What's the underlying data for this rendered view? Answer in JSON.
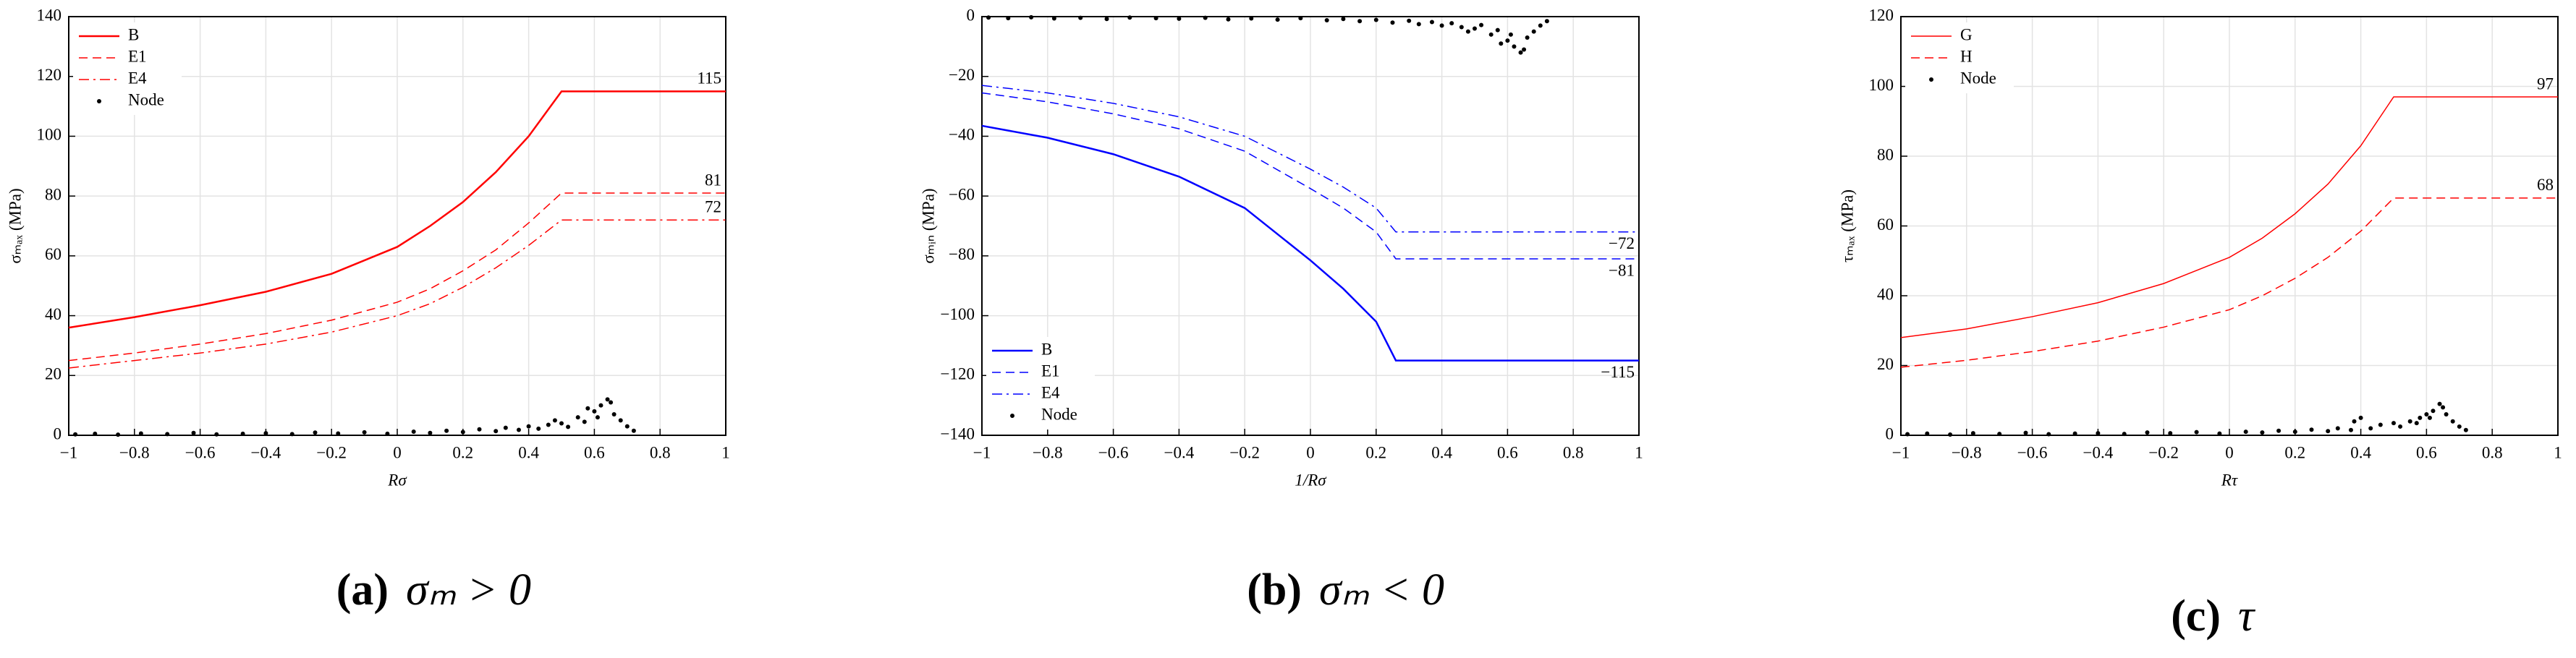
{
  "chart_data": [
    {
      "type": "line",
      "ylabel": "σₘₐₓ (MPa)",
      "xlabel": "Rσ",
      "caption_label": "(a)",
      "caption": "σₘ > 0",
      "x": [
        -1,
        -0.8,
        -0.6,
        -0.4,
        -0.2,
        0,
        0.1,
        0.2,
        0.3,
        0.4,
        0.5,
        1
      ],
      "xlim": [
        -1,
        1
      ],
      "ylim": [
        0,
        140
      ],
      "xticks": [
        {
          "value": -1,
          "label": "−1"
        },
        {
          "value": -0.8,
          "label": "−0.8"
        },
        {
          "value": -0.6,
          "label": "−0.6"
        },
        {
          "value": -0.4,
          "label": "−0.4"
        },
        {
          "value": -0.2,
          "label": "−0.2"
        },
        0,
        0.2,
        0.4,
        0.6,
        0.8,
        1
      ],
      "yticks": [
        0,
        20,
        40,
        60,
        80,
        100,
        120,
        140
      ],
      "grid": true,
      "legend": "upper left",
      "series": [
        {
          "name": "B",
          "color": "#ff0000",
          "dash": "solid",
          "linewidth": 2.5,
          "values": [
            36,
            39.5,
            43.5,
            48,
            54,
            63,
            70,
            78,
            88,
            100,
            115,
            115
          ]
        },
        {
          "name": "E1",
          "color": "#ff0000",
          "dash": "dashed",
          "linewidth": 1.5,
          "values": [
            25,
            27.5,
            30.5,
            34,
            38.5,
            44.5,
            49,
            55,
            62,
            71,
            81,
            81
          ]
        },
        {
          "name": "E4",
          "color": "#ff0000",
          "dash": "dashdot",
          "linewidth": 1.5,
          "values": [
            22.5,
            25,
            27.5,
            30.5,
            34.5,
            40,
            44,
            49.5,
            56,
            63.5,
            72,
            72
          ]
        },
        {
          "name": "Node",
          "color": "#000000",
          "mark": "dot",
          "x": [
            -0.98,
            -0.92,
            -0.85,
            -0.78,
            -0.7,
            -0.62,
            -0.55,
            -0.47,
            -0.4,
            -0.32,
            -0.25,
            -0.18,
            -0.1,
            -0.03,
            0.05,
            0.1,
            0.15,
            0.2,
            0.25,
            0.3,
            0.33,
            0.37,
            0.4,
            0.43,
            0.46,
            0.5,
            0.52,
            0.55,
            0.57,
            0.6,
            0.62,
            0.64,
            0.66,
            0.68,
            0.7,
            0.72,
            0.58,
            0.48,
            0.65,
            0.61
          ],
          "values": [
            0.3,
            0.5,
            0.2,
            0.6,
            0.4,
            0.8,
            0.3,
            0.5,
            0.7,
            0.4,
            0.9,
            0.6,
            1,
            0.5,
            1.2,
            0.8,
            1.5,
            1.1,
            2,
            1.4,
            2.5,
            1.8,
            3,
            2.2,
            3.5,
            4,
            2.8,
            6,
            4.5,
            8,
            10,
            12,
            7,
            5,
            3,
            1.5,
            9,
            5,
            11,
            6
          ]
        }
      ],
      "annotations": [
        {
          "label": "115",
          "value": 115
        },
        {
          "label": "81",
          "value": 81
        },
        {
          "label": "72",
          "value": 72
        }
      ]
    },
    {
      "type": "line",
      "ylabel": "σₘᵢₙ (MPa)",
      "xlabel": "1/Rσ",
      "caption_label": "(b)",
      "caption": "σₘ < 0",
      "x": [
        -1,
        -0.8,
        -0.6,
        -0.4,
        -0.2,
        0,
        0.1,
        0.2,
        0.26,
        1
      ],
      "xlim": [
        -1,
        1
      ],
      "ylim": [
        -140,
        0
      ],
      "xticks": [
        {
          "value": -1,
          "label": "−1"
        },
        {
          "value": -0.8,
          "label": "−0.8"
        },
        {
          "value": -0.6,
          "label": "−0.6"
        },
        {
          "value": -0.4,
          "label": "−0.4"
        },
        {
          "value": -0.2,
          "label": "−0.2"
        },
        0,
        0.2,
        0.4,
        0.6,
        0.8,
        1
      ],
      "yticks": [
        {
          "value": -140,
          "label": "−140"
        },
        {
          "value": -120,
          "label": "−120"
        },
        {
          "value": -100,
          "label": "−100"
        },
        {
          "value": -80,
          "label": "−80"
        },
        {
          "value": -60,
          "label": "−60"
        },
        {
          "value": -40,
          "label": "−40"
        },
        {
          "value": -20,
          "label": "−20"
        },
        0
      ],
      "grid": true,
      "legend": "lower left",
      "series": [
        {
          "name": "B",
          "color": "#0000ff",
          "dash": "solid",
          "linewidth": 2.5,
          "values": [
            -36.5,
            -40.5,
            -46,
            -53.5,
            -64,
            -81.5,
            -91,
            -102,
            -115,
            -115
          ]
        },
        {
          "name": "E1",
          "color": "#0000ff",
          "dash": "dashed",
          "linewidth": 1.5,
          "values": [
            -25.5,
            -28.5,
            -32.5,
            -37.5,
            -45,
            -57.5,
            -64,
            -72,
            -81,
            -81
          ]
        },
        {
          "name": "E4",
          "color": "#0000ff",
          "dash": "dashdot",
          "linewidth": 1.5,
          "values": [
            -23,
            -25.5,
            -29,
            -33.5,
            -40,
            -51,
            -57,
            -64,
            -72,
            -72
          ]
        },
        {
          "name": "Node",
          "color": "#000000",
          "mark": "dot",
          "x": [
            -0.98,
            -0.92,
            -0.85,
            -0.78,
            -0.7,
            -0.62,
            -0.55,
            -0.47,
            -0.4,
            -0.32,
            -0.25,
            -0.18,
            -0.1,
            -0.03,
            0.05,
            0.1,
            0.15,
            0.2,
            0.25,
            0.3,
            0.33,
            0.37,
            0.4,
            0.43,
            0.46,
            0.5,
            0.52,
            0.55,
            0.57,
            0.6,
            0.62,
            0.64,
            0.66,
            0.68,
            0.7,
            0.72,
            0.58,
            0.48,
            0.65,
            0.61
          ],
          "values": [
            -0.3,
            -0.5,
            -0.2,
            -0.6,
            -0.4,
            -0.8,
            -0.3,
            -0.5,
            -0.7,
            -0.4,
            -0.9,
            -0.6,
            -1,
            -0.5,
            -1.2,
            -0.8,
            -1.5,
            -1.1,
            -2,
            -1.4,
            -2.5,
            -1.8,
            -3,
            -2.2,
            -3.5,
            -4,
            -2.8,
            -6,
            -4.5,
            -8,
            -10,
            -12,
            -7,
            -5,
            -3,
            -1.5,
            -9,
            -5,
            -11,
            -6
          ]
        }
      ],
      "annotations": [
        {
          "label": "−72",
          "value": -72
        },
        {
          "label": "−81",
          "value": -81
        },
        {
          "label": "−115",
          "value": -115
        }
      ]
    },
    {
      "type": "line",
      "ylabel": "τₘₐₓ (MPa)",
      "xlabel": "Rτ",
      "caption_label": "(c)",
      "caption": "τ",
      "x": [
        -1,
        -0.8,
        -0.6,
        -0.4,
        -0.2,
        0,
        0.1,
        0.2,
        0.3,
        0.4,
        0.5,
        1
      ],
      "xlim": [
        -1,
        1
      ],
      "ylim": [
        0,
        120
      ],
      "xticks": [
        {
          "value": -1,
          "label": "−1"
        },
        {
          "value": -0.8,
          "label": "−0.8"
        },
        {
          "value": -0.6,
          "label": "−0.6"
        },
        {
          "value": -0.4,
          "label": "−0.4"
        },
        {
          "value": -0.2,
          "label": "−0.2"
        },
        0,
        0.2,
        0.4,
        0.6,
        0.8,
        1
      ],
      "yticks": [
        0,
        20,
        40,
        60,
        80,
        100,
        120
      ],
      "grid": true,
      "legend": "upper left",
      "series": [
        {
          "name": "G",
          "color": "#ff0000",
          "dash": "solid",
          "linewidth": 1.5,
          "values": [
            28,
            30.5,
            34,
            38,
            43.5,
            51,
            56.5,
            63.5,
            72,
            83,
            97,
            97
          ]
        },
        {
          "name": "H",
          "color": "#ff0000",
          "dash": "dashed",
          "linewidth": 1.5,
          "values": [
            19.5,
            21.5,
            24,
            27,
            31,
            36,
            40,
            45,
            51,
            58.5,
            68,
            68
          ]
        },
        {
          "name": "Node",
          "color": "#000000",
          "mark": "dot",
          "x": [
            -0.98,
            -0.92,
            -0.85,
            -0.78,
            -0.7,
            -0.62,
            -0.55,
            -0.47,
            -0.4,
            -0.32,
            -0.25,
            -0.18,
            -0.1,
            -0.03,
            0.05,
            0.1,
            0.15,
            0.2,
            0.25,
            0.3,
            0.33,
            0.37,
            0.4,
            0.43,
            0.46,
            0.5,
            0.52,
            0.55,
            0.57,
            0.6,
            0.62,
            0.64,
            0.66,
            0.68,
            0.7,
            0.72,
            0.58,
            0.38,
            0.65,
            0.61
          ],
          "values": [
            0.3,
            0.5,
            0.2,
            0.6,
            0.4,
            0.7,
            0.3,
            0.5,
            0.6,
            0.4,
            0.8,
            0.6,
            0.9,
            0.5,
            1,
            0.8,
            1.3,
            1,
            1.6,
            1.2,
            2,
            1.5,
            5,
            2,
            3,
            3.5,
            2.5,
            4,
            3.5,
            6,
            7,
            9,
            6,
            4,
            2.5,
            1.5,
            5,
            4,
            8,
            5
          ]
        }
      ],
      "annotations": [
        {
          "label": "97",
          "value": 97
        },
        {
          "label": "68",
          "value": 68
        }
      ]
    }
  ]
}
